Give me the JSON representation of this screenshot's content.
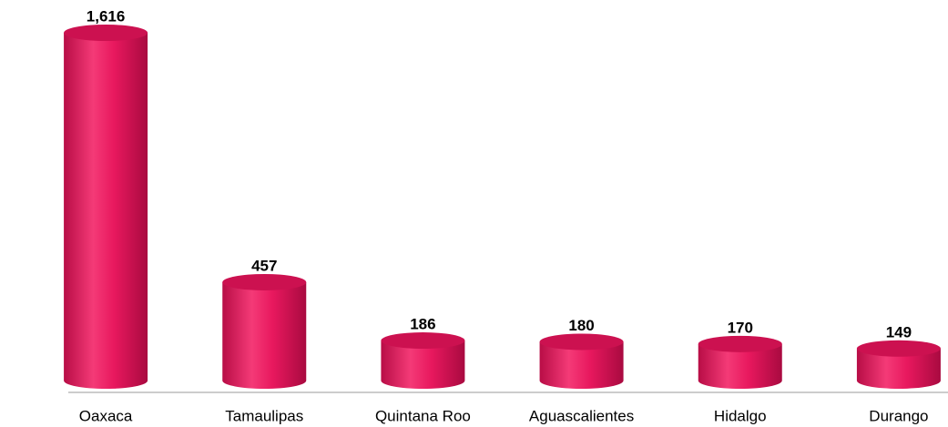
{
  "chart_data": {
    "type": "bar",
    "categories": [
      "Oaxaca",
      "Tamaulipas",
      "Quintana Roo",
      "Aguascalientes",
      "Hidalgo",
      "Durango"
    ],
    "values": [
      1616,
      457,
      186,
      180,
      170,
      149
    ],
    "value_labels": [
      "1,616",
      "457",
      "186",
      "180",
      "170",
      "149"
    ],
    "color": "#e8185e"
  }
}
